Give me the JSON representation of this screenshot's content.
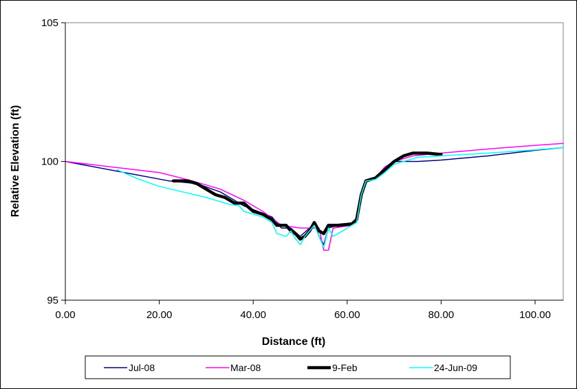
{
  "chart_data": {
    "type": "line",
    "xlabel": "Distance (ft)",
    "ylabel": "Relative Elevation (ft)",
    "xlim": [
      0,
      106
    ],
    "ylim": [
      95,
      105
    ],
    "x_ticks": [
      "0.00",
      "20.00",
      "40.00",
      "60.00",
      "80.00",
      "100.00"
    ],
    "y_ticks": [
      "95",
      "100",
      "105"
    ],
    "grid": false,
    "legend_position": "bottom",
    "series": [
      {
        "name": "Jul-08",
        "color": "#000080",
        "width": 1.5,
        "points": [
          [
            0,
            100.0
          ],
          [
            22,
            99.3
          ],
          [
            28,
            99.2
          ],
          [
            33,
            98.9
          ],
          [
            38,
            98.4
          ],
          [
            44,
            98.0
          ],
          [
            46,
            97.6
          ],
          [
            48,
            97.6
          ],
          [
            50,
            97.3
          ],
          [
            52,
            97.6
          ],
          [
            53,
            97.8
          ],
          [
            54,
            97.3
          ],
          [
            55,
            97.0
          ],
          [
            56,
            97.6
          ],
          [
            58,
            97.7
          ],
          [
            61,
            97.7
          ],
          [
            62,
            97.9
          ],
          [
            63,
            98.8
          ],
          [
            64,
            99.3
          ],
          [
            66,
            99.4
          ],
          [
            68,
            99.8
          ],
          [
            70,
            100.0
          ],
          [
            75,
            100.0
          ],
          [
            80,
            100.05
          ],
          [
            90,
            100.2
          ],
          [
            100,
            100.4
          ],
          [
            106,
            100.5
          ]
        ]
      },
      {
        "name": "Mar-08",
        "color": "#ff00ff",
        "width": 1.5,
        "points": [
          [
            0,
            100.0
          ],
          [
            10,
            99.8
          ],
          [
            20,
            99.6
          ],
          [
            27,
            99.3
          ],
          [
            33,
            99.0
          ],
          [
            38,
            98.6
          ],
          [
            42,
            98.2
          ],
          [
            46,
            97.7
          ],
          [
            50,
            97.6
          ],
          [
            54,
            97.6
          ],
          [
            55,
            96.8
          ],
          [
            56,
            96.8
          ],
          [
            57,
            97.6
          ],
          [
            61,
            97.7
          ],
          [
            62,
            98.0
          ],
          [
            63,
            98.8
          ],
          [
            64,
            99.3
          ],
          [
            66,
            99.4
          ],
          [
            68,
            99.8
          ],
          [
            70,
            100.0
          ],
          [
            74,
            100.2
          ],
          [
            80,
            100.3
          ],
          [
            90,
            100.45
          ],
          [
            100,
            100.58
          ],
          [
            106,
            100.65
          ]
        ]
      },
      {
        "name": "9-Feb",
        "color": "#000000",
        "width": 4.5,
        "points": [
          [
            23,
            99.3
          ],
          [
            26,
            99.3
          ],
          [
            28,
            99.2
          ],
          [
            30,
            99.0
          ],
          [
            32,
            98.8
          ],
          [
            34,
            98.7
          ],
          [
            36,
            98.5
          ],
          [
            38,
            98.5
          ],
          [
            40,
            98.2
          ],
          [
            42,
            98.1
          ],
          [
            44,
            97.9
          ],
          [
            45,
            97.7
          ],
          [
            47,
            97.7
          ],
          [
            48,
            97.5
          ],
          [
            49,
            97.4
          ],
          [
            50,
            97.2
          ],
          [
            51,
            97.3
          ],
          [
            52,
            97.5
          ],
          [
            53,
            97.8
          ],
          [
            54,
            97.5
          ],
          [
            55,
            97.4
          ],
          [
            56,
            97.7
          ],
          [
            58,
            97.7
          ],
          [
            61,
            97.75
          ],
          [
            62,
            97.9
          ],
          [
            63,
            98.8
          ],
          [
            64,
            99.3
          ],
          [
            66,
            99.4
          ],
          [
            68,
            99.7
          ],
          [
            70,
            100.0
          ],
          [
            72,
            100.2
          ],
          [
            74,
            100.3
          ],
          [
            77,
            100.3
          ],
          [
            80,
            100.25
          ]
        ]
      },
      {
        "name": "24-Jun-09",
        "color": "#00ffff",
        "width": 1.5,
        "points": [
          [
            11,
            99.7
          ],
          [
            15,
            99.4
          ],
          [
            20,
            99.1
          ],
          [
            25,
            98.9
          ],
          [
            30,
            98.7
          ],
          [
            35,
            98.45
          ],
          [
            37,
            98.4
          ],
          [
            38,
            98.2
          ],
          [
            40,
            98.1
          ],
          [
            42,
            98.0
          ],
          [
            44,
            97.8
          ],
          [
            45,
            97.4
          ],
          [
            47,
            97.3
          ],
          [
            48,
            97.5
          ],
          [
            49,
            97.2
          ],
          [
            50,
            97.0
          ],
          [
            51,
            97.3
          ],
          [
            52,
            97.5
          ],
          [
            53,
            97.7
          ],
          [
            54,
            97.3
          ],
          [
            55,
            96.9
          ],
          [
            56,
            97.6
          ],
          [
            57,
            97.3
          ],
          [
            59,
            97.5
          ],
          [
            61,
            97.7
          ],
          [
            62,
            97.8
          ],
          [
            63,
            98.8
          ],
          [
            64,
            99.3
          ],
          [
            66,
            99.35
          ],
          [
            68,
            99.6
          ],
          [
            70,
            99.9
          ],
          [
            73,
            100.05
          ],
          [
            75,
            100.15
          ],
          [
            80,
            100.2
          ],
          [
            90,
            100.3
          ],
          [
            100,
            100.42
          ],
          [
            106,
            100.5
          ]
        ]
      }
    ]
  }
}
